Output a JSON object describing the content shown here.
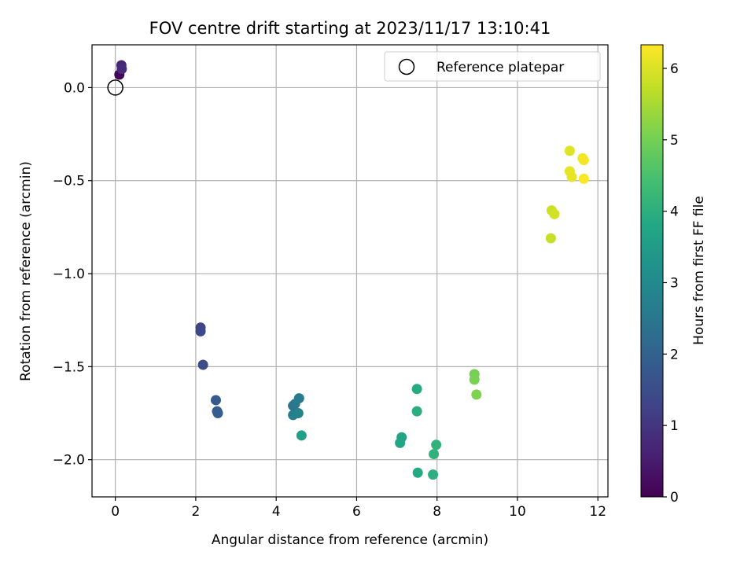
{
  "chart_data": {
    "type": "scatter",
    "title": "FOV centre drift starting at 2023/11/17 13:10:41",
    "xlabel": "Angular distance from reference (arcmin)",
    "ylabel": "Rotation from reference (arcmin)",
    "xlim": [
      -0.58,
      12.25
    ],
    "ylim": [
      -2.2,
      0.23
    ],
    "xticks": [
      0,
      2,
      4,
      6,
      8,
      10,
      12
    ],
    "yticks": [
      0.0,
      -0.5,
      -1.0,
      -1.5,
      -2.0
    ],
    "xtick_labels": [
      "0",
      "2",
      "4",
      "6",
      "8",
      "10",
      "12"
    ],
    "ytick_labels": [
      "0.0",
      "−0.5",
      "−1.0",
      "−1.5",
      "−2.0"
    ],
    "grid": true,
    "legend": {
      "position": "top-right",
      "entries": [
        "Reference platepar"
      ]
    },
    "reference": {
      "x": 0,
      "y": 0
    },
    "colorbar": {
      "label": "Hours from first FF file",
      "range": [
        0,
        6.33
      ],
      "ticks": [
        0,
        1,
        2,
        3,
        4,
        5,
        6
      ],
      "tick_labels": [
        "0",
        "1",
        "2",
        "3",
        "4",
        "5",
        "6"
      ],
      "colormap": "viridis"
    },
    "points": [
      {
        "x": 0.1,
        "y": 0.07,
        "hours": 0.05
      },
      {
        "x": 0.15,
        "y": 0.12,
        "hours": 0.7
      },
      {
        "x": 0.16,
        "y": 0.1,
        "hours": 0.8
      },
      {
        "x": 2.12,
        "y": -1.29,
        "hours": 1.3
      },
      {
        "x": 2.12,
        "y": -1.31,
        "hours": 1.35
      },
      {
        "x": 2.18,
        "y": -1.49,
        "hours": 1.5
      },
      {
        "x": 2.5,
        "y": -1.68,
        "hours": 1.8
      },
      {
        "x": 2.53,
        "y": -1.74,
        "hours": 1.85
      },
      {
        "x": 2.55,
        "y": -1.75,
        "hours": 1.9
      },
      {
        "x": 4.42,
        "y": -1.71,
        "hours": 2.4
      },
      {
        "x": 4.47,
        "y": -1.7,
        "hours": 2.5
      },
      {
        "x": 4.57,
        "y": -1.67,
        "hours": 2.6
      },
      {
        "x": 4.42,
        "y": -1.76,
        "hours": 2.7
      },
      {
        "x": 4.55,
        "y": -1.75,
        "hours": 2.8
      },
      {
        "x": 4.63,
        "y": -1.87,
        "hours": 3.6
      },
      {
        "x": 7.5,
        "y": -1.62,
        "hours": 3.9
      },
      {
        "x": 7.5,
        "y": -1.74,
        "hours": 3.95
      },
      {
        "x": 7.12,
        "y": -1.88,
        "hours": 3.7
      },
      {
        "x": 7.08,
        "y": -1.91,
        "hours": 3.75
      },
      {
        "x": 7.52,
        "y": -2.07,
        "hours": 3.85
      },
      {
        "x": 7.9,
        "y": -2.08,
        "hours": 4.0
      },
      {
        "x": 7.92,
        "y": -1.97,
        "hours": 4.05
      },
      {
        "x": 7.98,
        "y": -1.92,
        "hours": 4.1
      },
      {
        "x": 8.93,
        "y": -1.54,
        "hours": 5.0
      },
      {
        "x": 8.93,
        "y": -1.57,
        "hours": 5.05
      },
      {
        "x": 8.98,
        "y": -1.65,
        "hours": 5.1
      },
      {
        "x": 11.3,
        "y": -0.34,
        "hours": 6.05
      },
      {
        "x": 11.3,
        "y": -0.45,
        "hours": 6.1
      },
      {
        "x": 11.35,
        "y": -0.48,
        "hours": 6.1
      },
      {
        "x": 11.62,
        "y": -0.38,
        "hours": 6.2
      },
      {
        "x": 11.65,
        "y": -0.39,
        "hours": 6.25
      },
      {
        "x": 11.65,
        "y": -0.49,
        "hours": 6.3
      },
      {
        "x": 10.85,
        "y": -0.66,
        "hours": 5.85
      },
      {
        "x": 10.92,
        "y": -0.68,
        "hours": 5.9
      },
      {
        "x": 10.83,
        "y": -0.81,
        "hours": 5.8
      }
    ]
  }
}
